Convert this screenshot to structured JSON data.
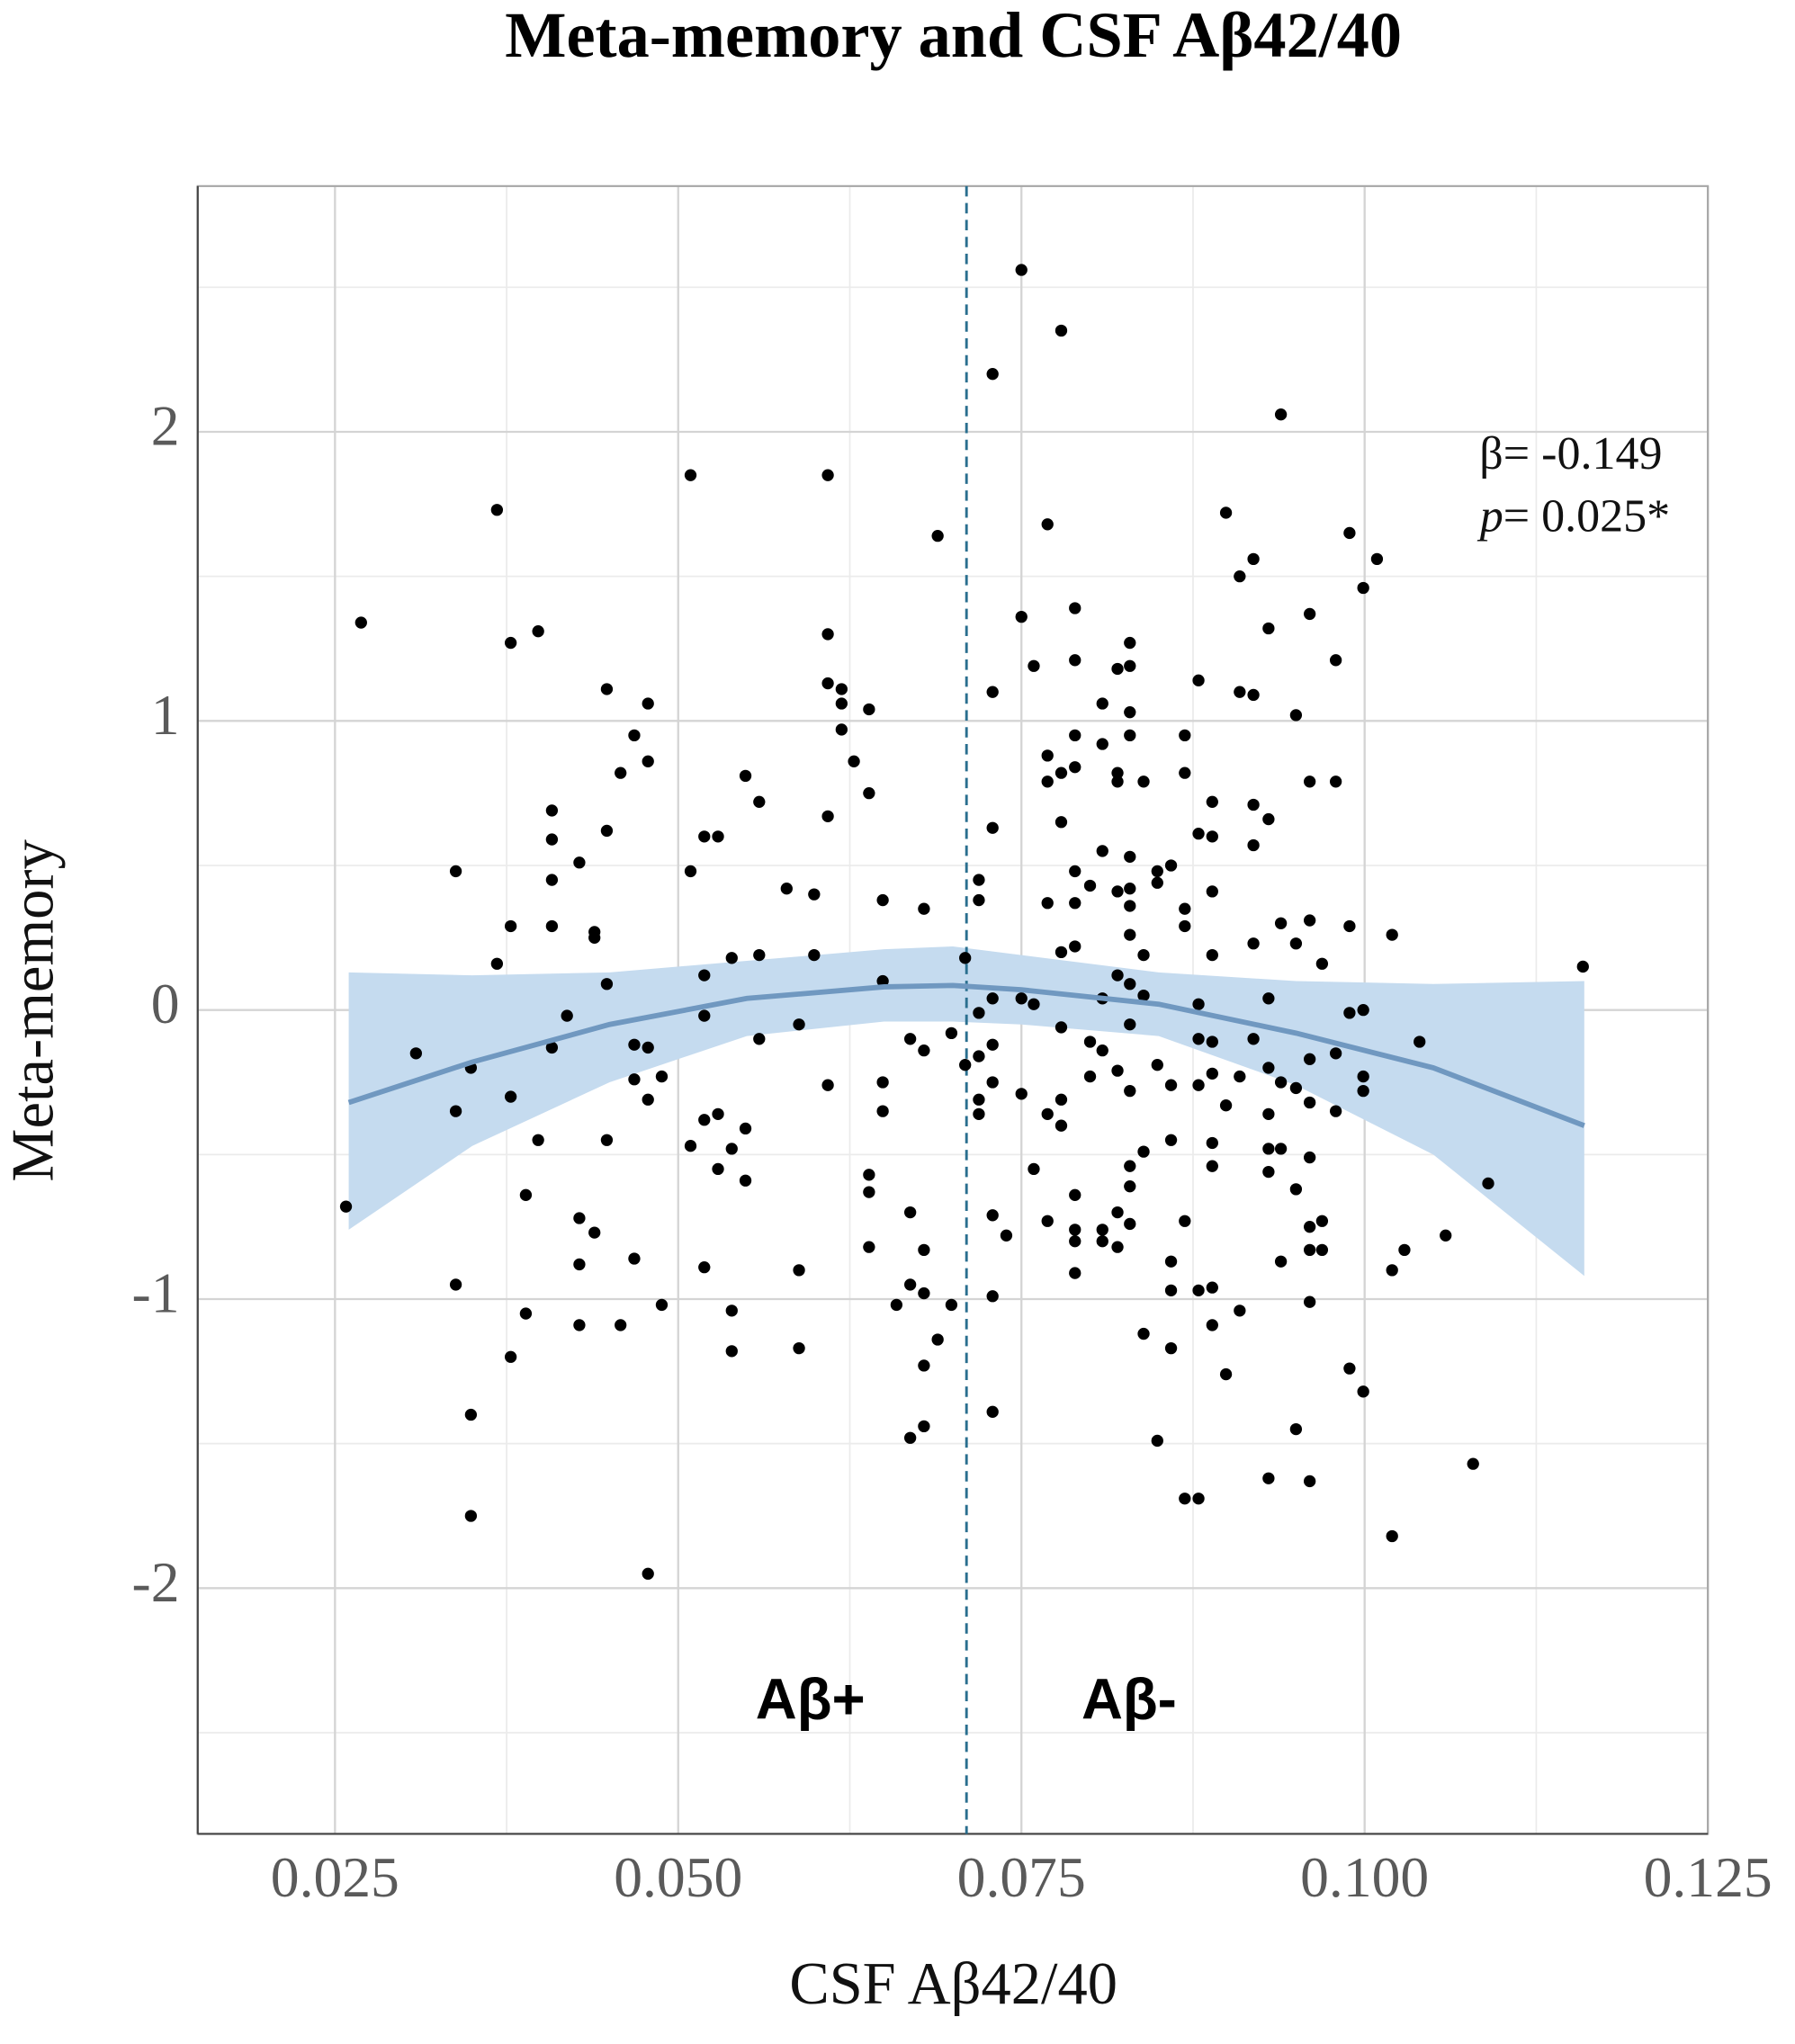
{
  "chart_data": {
    "type": "scatter",
    "title": "Meta-memory and CSF Aβ42/40",
    "x_label": "CSF Aβ42/40",
    "y_label": "Meta-memory",
    "xlim": [
      0.015,
      0.125
    ],
    "ylim": [
      -2.85,
      2.85
    ],
    "xticks": [
      0.025,
      {
        "value": 0.05,
        "label": "0.050"
      },
      0.075,
      {
        "value": 0.1,
        "label": "0.100"
      },
      0.125
    ],
    "yticks": [
      -2,
      -1,
      0,
      1,
      2
    ],
    "grid": true,
    "minor_grid": true,
    "point_color": "#000000",
    "x": [
      0.0258,
      0.0269,
      0.0309,
      0.0338,
      0.0338,
      0.0338,
      0.0349,
      0.0349,
      0.0349,
      0.0368,
      0.0368,
      0.0378,
      0.0378,
      0.0378,
      0.0378,
      0.0389,
      0.0389,
      0.0398,
      0.0398,
      0.0408,
      0.0408,
      0.0408,
      0.0408,
      0.0408,
      0.0419,
      0.0428,
      0.0428,
      0.0428,
      0.0428,
      0.0439,
      0.0439,
      0.0439,
      0.0448,
      0.0448,
      0.0448,
      0.0448,
      0.0458,
      0.0458,
      0.0468,
      0.0468,
      0.0468,
      0.0468,
      0.0478,
      0.0478,
      0.0478,
      0.0478,
      0.0478,
      0.0488,
      0.0488,
      0.0509,
      0.0509,
      0.0509,
      0.0519,
      0.0519,
      0.0519,
      0.0519,
      0.0519,
      0.0529,
      0.0529,
      0.0529,
      0.0539,
      0.0539,
      0.0539,
      0.0539,
      0.0549,
      0.0549,
      0.0549,
      0.0559,
      0.0559,
      0.0559,
      0.0579,
      0.0588,
      0.0588,
      0.0588,
      0.0599,
      0.0599,
      0.0609,
      0.0609,
      0.0609,
      0.0609,
      0.0609,
      0.0619,
      0.0619,
      0.0619,
      0.0628,
      0.0639,
      0.0639,
      0.0639,
      0.0639,
      0.0639,
      0.0649,
      0.0649,
      0.0649,
      0.0649,
      0.0659,
      0.0669,
      0.0669,
      0.0669,
      0.0669,
      0.0679,
      0.0679,
      0.0679,
      0.0679,
      0.0679,
      0.0679,
      0.0689,
      0.0689,
      0.0699,
      0.0699,
      0.0709,
      0.0709,
      0.0719,
      0.0719,
      0.0719,
      0.0719,
      0.0719,
      0.0719,
      0.0729,
      0.0729,
      0.0729,
      0.0729,
      0.0729,
      0.0729,
      0.0729,
      0.0729,
      0.0729,
      0.0739,
      0.075,
      0.075,
      0.075,
      0.075,
      0.0759,
      0.0759,
      0.0759,
      0.0769,
      0.0769,
      0.0769,
      0.0769,
      0.0769,
      0.0769,
      0.0779,
      0.0779,
      0.0779,
      0.0779,
      0.0779,
      0.0779,
      0.0779,
      0.0789,
      0.0789,
      0.0789,
      0.0789,
      0.0789,
      0.0789,
      0.0789,
      0.0789,
      0.0789,
      0.0789,
      0.0789,
      0.08,
      0.08,
      0.08,
      0.0809,
      0.0809,
      0.0809,
      0.0809,
      0.0809,
      0.0809,
      0.0809,
      0.082,
      0.082,
      0.082,
      0.082,
      0.082,
      0.082,
      0.082,
      0.082,
      0.0829,
      0.0829,
      0.0829,
      0.0829,
      0.0829,
      0.0829,
      0.0829,
      0.0829,
      0.0829,
      0.0829,
      0.0829,
      0.0829,
      0.0829,
      0.0829,
      0.0839,
      0.0839,
      0.0839,
      0.0839,
      0.0839,
      0.0849,
      0.0849,
      0.0849,
      0.0849,
      0.0859,
      0.0859,
      0.0859,
      0.0859,
      0.0859,
      0.0859,
      0.0869,
      0.0869,
      0.0869,
      0.0869,
      0.0869,
      0.0869,
      0.0879,
      0.0879,
      0.0879,
      0.0879,
      0.0879,
      0.0879,
      0.0879,
      0.0889,
      0.0889,
      0.0889,
      0.0889,
      0.0889,
      0.0889,
      0.0889,
      0.0889,
      0.0889,
      0.0889,
      0.0899,
      0.0899,
      0.0899,
      0.0909,
      0.0909,
      0.0909,
      0.0909,
      0.0919,
      0.0919,
      0.0919,
      0.0919,
      0.0919,
      0.0919,
      0.093,
      0.093,
      0.093,
      0.093,
      0.093,
      0.093,
      0.093,
      0.093,
      0.0939,
      0.0939,
      0.0939,
      0.0939,
      0.0939,
      0.095,
      0.095,
      0.095,
      0.095,
      0.095,
      0.096,
      0.096,
      0.096,
      0.096,
      0.096,
      0.096,
      0.096,
      0.096,
      0.096,
      0.096,
      0.0969,
      0.0969,
      0.0969,
      0.0979,
      0.0979,
      0.0979,
      0.0979,
      0.0989,
      0.0989,
      0.0989,
      0.0989,
      0.0999,
      0.0999,
      0.0999,
      0.0999,
      0.0999,
      0.1009,
      0.102,
      0.102,
      0.102,
      0.1029,
      0.104,
      0.1059,
      0.1079,
      0.109,
      0.1159
    ],
    "y": [
      -0.68,
      1.34,
      -0.15,
      0.48,
      -0.35,
      -0.95,
      -0.2,
      -1.4,
      -1.75,
      1.73,
      0.16,
      1.27,
      0.29,
      -0.3,
      -1.2,
      -0.64,
      -1.05,
      1.31,
      -0.45,
      0.69,
      0.59,
      0.45,
      0.29,
      -0.13,
      -0.02,
      0.51,
      -0.72,
      -0.88,
      -1.09,
      0.27,
      0.25,
      -0.77,
      1.11,
      0.62,
      0.09,
      -0.45,
      0.82,
      -1.09,
      0.95,
      -0.12,
      -0.24,
      -0.86,
      1.06,
      0.86,
      -0.13,
      -0.31,
      -1.95,
      -0.23,
      -1.02,
      1.85,
      0.48,
      -0.47,
      0.6,
      0.12,
      -0.02,
      -0.38,
      -0.89,
      0.6,
      -0.36,
      -0.55,
      0.18,
      -0.48,
      -1.04,
      -1.18,
      0.81,
      -0.41,
      -0.59,
      0.72,
      0.19,
      -0.1,
      0.42,
      -0.05,
      -0.9,
      -1.17,
      0.4,
      0.19,
      1.85,
      1.3,
      1.13,
      0.67,
      -0.26,
      1.11,
      1.06,
      0.97,
      0.86,
      1.04,
      0.75,
      -0.57,
      -0.63,
      -0.82,
      0.38,
      0.1,
      -0.25,
      -0.35,
      -1.02,
      -0.1,
      -0.7,
      -0.95,
      -1.48,
      0.35,
      -0.14,
      -0.83,
      -0.98,
      -1.23,
      -1.44,
      1.64,
      -1.14,
      -0.08,
      -1.02,
      0.18,
      -0.19,
      0.45,
      0.38,
      -0.01,
      -0.16,
      -0.31,
      -0.36,
      2.2,
      1.1,
      0.63,
      0.04,
      -0.12,
      -0.25,
      -0.71,
      -0.99,
      -1.39,
      -0.78,
      2.56,
      1.36,
      0.04,
      -0.29,
      1.19,
      0.02,
      -0.55,
      1.68,
      0.88,
      0.79,
      0.37,
      -0.36,
      -0.73,
      2.35,
      0.82,
      0.65,
      0.2,
      -0.06,
      -0.31,
      -0.4,
      1.39,
      1.21,
      0.95,
      0.84,
      0.48,
      0.37,
      0.22,
      -0.64,
      -0.76,
      -0.8,
      -0.91,
      0.43,
      -0.11,
      -0.23,
      1.06,
      0.92,
      0.55,
      0.04,
      -0.14,
      -0.76,
      -0.8,
      1.18,
      0.82,
      0.79,
      0.41,
      0.12,
      -0.21,
      -0.7,
      -0.82,
      1.27,
      1.19,
      1.03,
      0.95,
      0.53,
      0.42,
      0.36,
      0.26,
      0.09,
      -0.05,
      -0.28,
      -0.54,
      -0.61,
      -0.74,
      0.79,
      0.19,
      0.05,
      -0.49,
      -1.12,
      0.48,
      0.44,
      -0.19,
      -1.49,
      0.5,
      -0.26,
      -0.45,
      -0.87,
      -0.97,
      -1.17,
      0.95,
      0.82,
      0.35,
      0.29,
      -0.73,
      -1.69,
      1.14,
      0.61,
      0.02,
      -0.1,
      -0.26,
      -0.97,
      -1.69,
      0.72,
      0.6,
      0.41,
      0.19,
      -0.11,
      -0.22,
      -0.46,
      -0.54,
      -0.96,
      -1.09,
      1.72,
      -0.33,
      -1.26,
      1.5,
      1.1,
      -0.23,
      -1.04,
      1.56,
      1.09,
      0.71,
      0.57,
      0.23,
      -0.1,
      1.32,
      0.66,
      0.04,
      -0.2,
      -0.36,
      -0.48,
      -0.56,
      -1.62,
      2.06,
      0.3,
      -0.25,
      -0.48,
      -0.87,
      1.02,
      0.23,
      -0.27,
      -0.62,
      -1.45,
      1.37,
      0.79,
      0.31,
      -0.17,
      -0.32,
      -0.51,
      -0.75,
      -0.83,
      -1.01,
      -1.63,
      0.16,
      -0.73,
      -0.83,
      1.21,
      0.79,
      -0.15,
      -0.35,
      1.65,
      0.29,
      -0.01,
      -1.24,
      1.46,
      0,
      -0.23,
      -0.28,
      -1.32,
      1.56,
      0.26,
      -0.9,
      -1.82,
      -0.83,
      -0.11,
      -0.78,
      -1.57,
      -0.6,
      0.15
    ],
    "fit": {
      "color": "#7098c0",
      "band_color": "#c5dbef",
      "x": [
        0.026,
        0.035,
        0.045,
        0.055,
        0.065,
        0.07,
        0.075,
        0.085,
        0.095,
        0.105,
        0.116
      ],
      "y": [
        -0.32,
        -0.18,
        -0.05,
        0.04,
        0.08,
        0.085,
        0.07,
        0.02,
        -0.08,
        -0.2,
        -0.4
      ],
      "upper": [
        0.13,
        0.12,
        0.13,
        0.17,
        0.21,
        0.22,
        0.19,
        0.13,
        0.1,
        0.09,
        0.1
      ],
      "lower": [
        -0.76,
        -0.47,
        -0.25,
        -0.09,
        -0.04,
        -0.04,
        -0.05,
        -0.09,
        -0.26,
        -0.5,
        -0.92
      ]
    },
    "threshold": 0.071,
    "threshold_color": "#2a6f8f",
    "group_below": "Aβ+",
    "group_above": "Aβ-",
    "stats": {
      "beta": "β= -0.149",
      "p_symbol": "p",
      "p_value": "= 0.025*"
    }
  }
}
